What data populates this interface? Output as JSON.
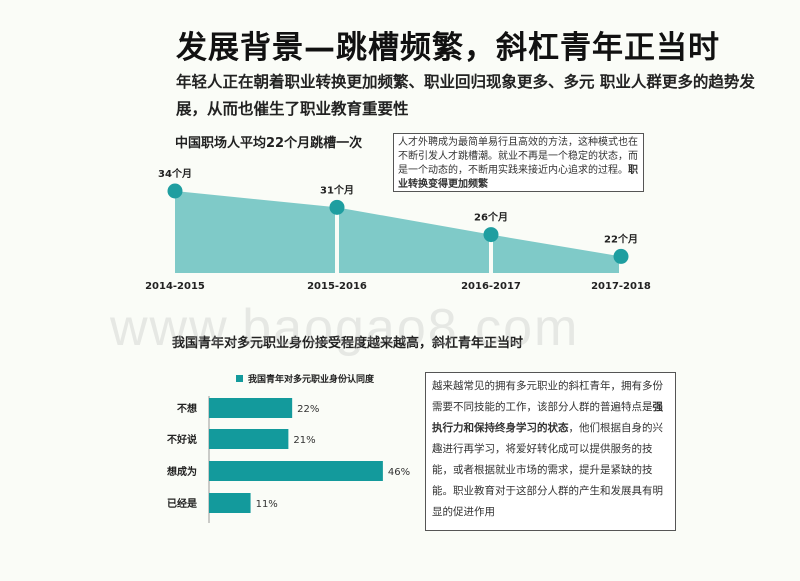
{
  "page": {
    "title": "发展背景—跳槽频繁，斜杠青年正当时",
    "subtitle": "年轻人正在朝着职业转换更加频繁、职业回归现象更多、多元  职业人群更多的趋势发展，从而也催生了职业教育重要性",
    "watermark": "www.baogao8.com"
  },
  "section1": {
    "heading": "中国职场人平均22个月跳槽一次",
    "note_text": "人才外聘成为最简单易行且高效的方法，这种模式也在不断引发人才跳槽潮。就业不再是一个稳定的状态，而是一个动态的，不断用实践来接近内心追求的过程。",
    "note_bold": "职业转换变得更加频繁"
  },
  "section2": {
    "heading": "我国青年对多元职业身份接受程度越来越高，斜杠青年正当时",
    "note_text_before": "越来越常见的拥有多元职业的斜杠青年，拥有多份需要不同技能的工作，该部分人群的普遍特点是",
    "note_bold": "强执行力和保持终身学习的状态",
    "note_text_after": "，他们根据自身的兴趣进行再学习，将爱好转化成可以提供服务的技能，或者根据就业市场的需求，提升是紧缺的技能。职业教育对于这部分人群的产生和发展具有明显的促进作用"
  },
  "colors": {
    "area_fill": "#7fcac8",
    "marker": "#1f9ea0",
    "bar": "#139a9c"
  },
  "chart_data": [
    {
      "type": "area",
      "categories": [
        "2014-2015",
        "2015-2016",
        "2016-2017",
        "2017-2018"
      ],
      "values": [
        34,
        31,
        26,
        22
      ],
      "data_labels": [
        "34个月",
        "31个月",
        "26个月",
        "22个月"
      ],
      "grid": false
    },
    {
      "type": "bar",
      "orientation": "horizontal",
      "categories": [
        "不想",
        "不好说",
        "想成为",
        "已经是"
      ],
      "series": [
        {
          "name": "我国青年对多元职业身份认同度",
          "values": [
            22,
            21,
            46,
            11
          ]
        }
      ],
      "data_labels": [
        "22%",
        "21%",
        "46%",
        "11%"
      ],
      "xlim": [
        0,
        100
      ],
      "legend": "top",
      "grid": false
    }
  ]
}
